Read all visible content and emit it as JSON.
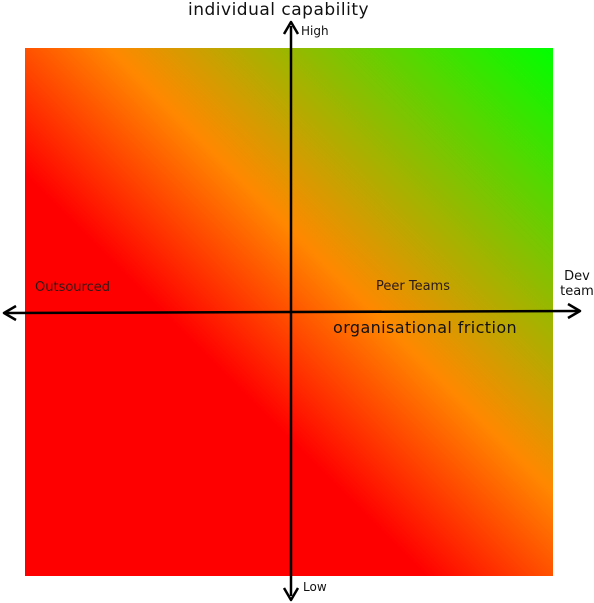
{
  "diagram": {
    "title": "individual capability",
    "y_axis": {
      "high_label": "High",
      "low_label": "Low"
    },
    "x_axis": {
      "label": "organisational friction",
      "end_label": "Dev team"
    },
    "quadrant_labels": {
      "left": "Outsourced",
      "right": "Peer Teams"
    },
    "colors": {
      "red": "#ff0000",
      "orange": "#ff8800",
      "green": "#00ff00",
      "axis": "#000000"
    }
  }
}
